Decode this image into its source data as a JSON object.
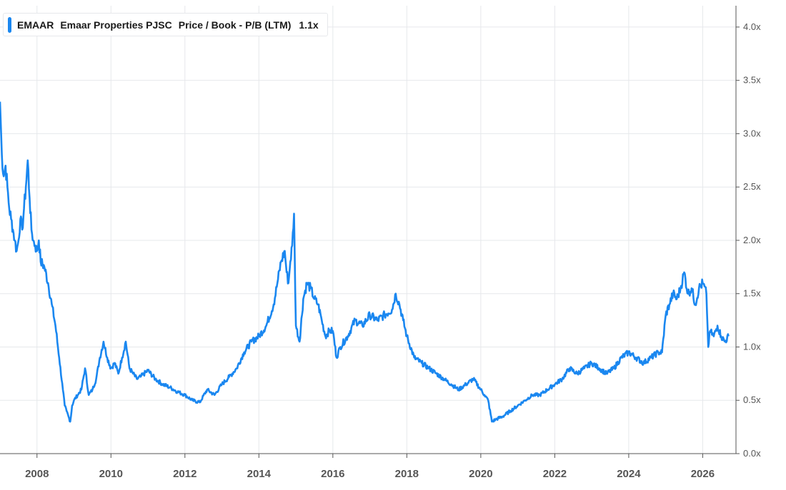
{
  "legend": {
    "ticker": "EMAAR",
    "company": "Emaar Properties PJSC",
    "metric": "Price / Book - P/B (LTM)",
    "value": "1.1x"
  },
  "colors": {
    "series": "#1a87f0",
    "grid": "#e6e8eb",
    "axis": "#555555",
    "text": "#1a1a1a"
  },
  "chart_data": {
    "type": "line",
    "title": "",
    "xlabel": "",
    "ylabel": "",
    "xlim": [
      2007.0,
      2026.9
    ],
    "ylim": [
      0.0,
      4.2
    ],
    "grid": true,
    "y_axis_position": "right",
    "x_ticks": [
      "2008",
      "2010",
      "2012",
      "2014",
      "2016",
      "2018",
      "2020",
      "2022",
      "2024",
      "2026"
    ],
    "x_tick_values": [
      2008,
      2010,
      2012,
      2014,
      2016,
      2018,
      2020,
      2022,
      2024,
      2026
    ],
    "y_ticks": [
      "0.0x",
      "0.5x",
      "1.0x",
      "1.5x",
      "2.0x",
      "2.5x",
      "3.0x",
      "3.5x",
      "4.0x"
    ],
    "y_tick_values": [
      0.0,
      0.5,
      1.0,
      1.5,
      2.0,
      2.5,
      3.0,
      3.5,
      4.0
    ],
    "series": [
      {
        "name": "EMAAR",
        "x": [
          2007.0,
          2007.05,
          2007.1,
          2007.15,
          2007.2,
          2007.25,
          2007.3,
          2007.35,
          2007.4,
          2007.45,
          2007.5,
          2007.55,
          2007.6,
          2007.65,
          2007.7,
          2007.75,
          2007.8,
          2007.85,
          2007.9,
          2007.95,
          2008.0,
          2008.05,
          2008.1,
          2008.2,
          2008.3,
          2008.4,
          2008.5,
          2008.6,
          2008.7,
          2008.75,
          2008.8,
          2008.85,
          2008.9,
          2008.95,
          2009.0,
          2009.1,
          2009.2,
          2009.3,
          2009.4,
          2009.5,
          2009.6,
          2009.7,
          2009.8,
          2009.9,
          2010.0,
          2010.1,
          2010.2,
          2010.3,
          2010.4,
          2010.5,
          2010.6,
          2010.7,
          2010.8,
          2011.0,
          2011.2,
          2011.4,
          2011.6,
          2011.8,
          2012.0,
          2012.2,
          2012.4,
          2012.6,
          2012.8,
          2013.0,
          2013.2,
          2013.4,
          2013.6,
          2013.8,
          2014.0,
          2014.2,
          2014.4,
          2014.5,
          2014.6,
          2014.7,
          2014.75,
          2014.8,
          2014.85,
          2014.9,
          2014.95,
          2015.0,
          2015.1,
          2015.2,
          2015.3,
          2015.4,
          2015.5,
          2015.6,
          2015.7,
          2015.8,
          2015.9,
          2016.0,
          2016.1,
          2016.2,
          2016.4,
          2016.6,
          2016.8,
          2017.0,
          2017.2,
          2017.4,
          2017.6,
          2017.7,
          2017.8,
          2017.9,
          2018.0,
          2018.2,
          2018.4,
          2018.6,
          2018.8,
          2019.0,
          2019.2,
          2019.4,
          2019.6,
          2019.8,
          2020.0,
          2020.1,
          2020.2,
          2020.3,
          2020.4,
          2020.6,
          2020.8,
          2021.0,
          2021.2,
          2021.4,
          2021.6,
          2021.8,
          2022.0,
          2022.2,
          2022.4,
          2022.6,
          2022.8,
          2023.0,
          2023.2,
          2023.4,
          2023.6,
          2023.8,
          2024.0,
          2024.2,
          2024.4,
          2024.6,
          2024.8,
          2024.9,
          2025.0,
          2025.1,
          2025.2,
          2025.3,
          2025.4,
          2025.5,
          2025.6,
          2025.7,
          2025.8,
          2025.9,
          2026.0,
          2026.1,
          2026.15,
          2026.2,
          2026.3,
          2026.4,
          2026.5,
          2026.6,
          2026.7
        ],
        "values": [
          3.3,
          2.8,
          2.6,
          2.7,
          2.5,
          2.3,
          2.2,
          2.1,
          2.0,
          1.9,
          2.0,
          2.2,
          2.1,
          2.3,
          2.5,
          2.75,
          2.4,
          2.1,
          2.0,
          1.95,
          1.9,
          2.0,
          1.8,
          1.75,
          1.6,
          1.4,
          1.2,
          0.9,
          0.6,
          0.45,
          0.4,
          0.35,
          0.3,
          0.45,
          0.5,
          0.55,
          0.6,
          0.8,
          0.55,
          0.6,
          0.7,
          0.9,
          1.05,
          0.9,
          0.8,
          0.85,
          0.75,
          0.9,
          1.05,
          0.8,
          0.75,
          0.7,
          0.72,
          0.78,
          0.7,
          0.65,
          0.62,
          0.58,
          0.55,
          0.5,
          0.48,
          0.6,
          0.55,
          0.65,
          0.72,
          0.8,
          0.95,
          1.05,
          1.1,
          1.2,
          1.4,
          1.6,
          1.8,
          1.9,
          1.7,
          1.6,
          1.8,
          1.95,
          2.25,
          1.2,
          1.05,
          1.45,
          1.6,
          1.55,
          1.45,
          1.4,
          1.25,
          1.1,
          1.15,
          1.15,
          0.9,
          1.0,
          1.1,
          1.25,
          1.2,
          1.3,
          1.25,
          1.3,
          1.35,
          1.5,
          1.4,
          1.25,
          1.1,
          0.9,
          0.85,
          0.8,
          0.75,
          0.7,
          0.65,
          0.6,
          0.65,
          0.7,
          0.6,
          0.55,
          0.5,
          0.3,
          0.32,
          0.35,
          0.4,
          0.45,
          0.5,
          0.55,
          0.55,
          0.6,
          0.65,
          0.7,
          0.8,
          0.75,
          0.8,
          0.85,
          0.8,
          0.75,
          0.8,
          0.9,
          0.95,
          0.9,
          0.85,
          0.9,
          0.95,
          0.95,
          1.3,
          1.4,
          1.5,
          1.45,
          1.55,
          1.7,
          1.5,
          1.55,
          1.4,
          1.55,
          1.6,
          1.5,
          1.0,
          1.15,
          1.1,
          1.2,
          1.1,
          1.05,
          1.1
        ]
      }
    ]
  }
}
